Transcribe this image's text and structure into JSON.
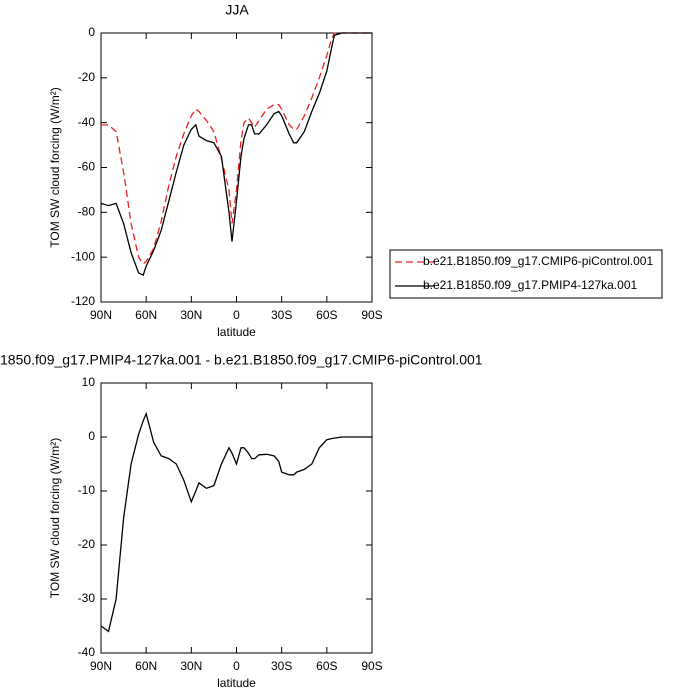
{
  "chart_data": [
    {
      "type": "line",
      "title": "JJA",
      "xlabel": "latitude",
      "ylabel": "TOM SW cloud forcing (W/m²)",
      "x": [
        90,
        85,
        80,
        75,
        70,
        65,
        62,
        60,
        55,
        50,
        45,
        40,
        35,
        30,
        27,
        25,
        20,
        15,
        10,
        5,
        3,
        0,
        -3,
        -5,
        -8,
        -10,
        -12,
        -15,
        -20,
        -25,
        -28,
        -30,
        -35,
        -38,
        -40,
        -45,
        -50,
        -55,
        -60,
        -63,
        -65,
        -70,
        -80,
        -90
      ],
      "xlim": [
        90,
        -90
      ],
      "xticks": [
        {
          "value": 90,
          "label": "90N"
        },
        {
          "value": 60,
          "label": "60N"
        },
        {
          "value": 30,
          "label": "30N"
        },
        0,
        {
          "value": -30,
          "label": "30S"
        },
        {
          "value": -60,
          "label": "60S"
        },
        {
          "value": -90,
          "label": "90S"
        }
      ],
      "ylim": [
        -120,
        0
      ],
      "yticks": [
        -120,
        -100,
        -80,
        -60,
        -40,
        -20,
        0
      ],
      "legend": "right",
      "series": [
        {
          "name": "b.e21.B1850.f09_g17.CMIP6-piControl.001",
          "color": "#e8201f",
          "dash": "dashed",
          "values": [
            -41,
            -41,
            -44,
            -62,
            -85,
            -100,
            -103,
            -102,
            -96,
            -84,
            -68,
            -55,
            -45,
            -37,
            -34,
            -35,
            -39,
            -44,
            -56,
            -70,
            -85,
            -70,
            -48,
            -40,
            -38,
            -40,
            -42,
            -39,
            -34,
            -32,
            -32,
            -34,
            -41,
            -43,
            -43,
            -37,
            -29,
            -20,
            -10,
            -3,
            0,
            0,
            0,
            0
          ]
        },
        {
          "name": "b.e21.B1850.f09_g17.PMIP4-127ka.001",
          "color": "#000000",
          "dash": "solid",
          "values": [
            -76,
            -77,
            -76,
            -85,
            -98,
            -107,
            -108,
            -104,
            -97,
            -88,
            -75,
            -62,
            -50,
            -43,
            -41,
            -46,
            -48,
            -49,
            -55,
            -80,
            -93,
            -75,
            -55,
            -47,
            -41,
            -41,
            -45,
            -45,
            -41,
            -36,
            -35,
            -37,
            -45,
            -49,
            -49,
            -44,
            -35,
            -27,
            -17,
            -7,
            -1,
            0,
            0,
            0
          ]
        }
      ]
    },
    {
      "type": "line",
      "title": "1850.f09_g17.PMIP4-127ka.001 - b.e21.B1850.f09_g17.CMIP6-piControl.001",
      "xlabel": "latitude",
      "ylabel": "TOM SW cloud forcing (W/m²)",
      "x": [
        90,
        85,
        80,
        75,
        70,
        65,
        62,
        60,
        55,
        50,
        45,
        40,
        35,
        30,
        27,
        25,
        20,
        15,
        10,
        5,
        3,
        0,
        -3,
        -5,
        -8,
        -10,
        -12,
        -15,
        -20,
        -25,
        -28,
        -30,
        -35,
        -38,
        -40,
        -45,
        -50,
        -55,
        -60,
        -63,
        -65,
        -70,
        -80,
        -90
      ],
      "xlim": [
        90,
        -90
      ],
      "xticks": [
        {
          "value": 90,
          "label": "90N"
        },
        {
          "value": 60,
          "label": "60N"
        },
        {
          "value": 30,
          "label": "30N"
        },
        0,
        {
          "value": -30,
          "label": "30S"
        },
        {
          "value": -60,
          "label": "60S"
        },
        {
          "value": -90,
          "label": "90S"
        }
      ],
      "ylim": [
        -40,
        10
      ],
      "yticks": [
        -40,
        -30,
        -20,
        -10,
        0,
        10
      ],
      "series": [
        {
          "color": "#000000",
          "dash": "solid",
          "values": [
            -35,
            -36,
            -30,
            -15,
            -5,
            0.5,
            3,
            4.3,
            -1,
            -3.5,
            -4,
            -5,
            -8,
            -12,
            -10,
            -8.5,
            -9.5,
            -9,
            -5,
            -2,
            -3,
            -5,
            -2,
            -2,
            -3,
            -4,
            -4,
            -3.3,
            -3.2,
            -3.5,
            -4.5,
            -6.5,
            -7,
            -7,
            -6.5,
            -6,
            -5,
            -2,
            -0.5,
            -0.3,
            -0.2,
            0,
            0,
            0
          ]
        }
      ]
    }
  ]
}
